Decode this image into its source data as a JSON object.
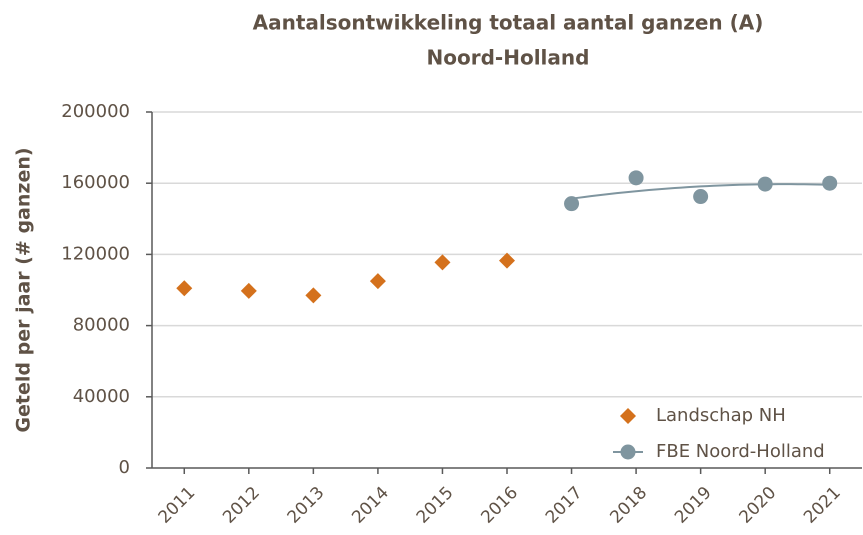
{
  "chart_data": {
    "type": "scatter",
    "title": [
      "Aantalsontwikkeling totaal aantal ganzen (A)",
      "Noord-Holland"
    ],
    "y_label": "Geteld per jaar (# ganzen)",
    "categories": [
      "2011",
      "2012",
      "2013",
      "2014",
      "2015",
      "2016",
      "2017",
      "2018",
      "2019",
      "2020",
      "2021"
    ],
    "series": [
      {
        "name": "Landschap NH",
        "color": "#d4711c",
        "marker": "diamond",
        "values": [
          101000,
          99500,
          97000,
          105000,
          115500,
          116500,
          null,
          null,
          null,
          null,
          null
        ]
      },
      {
        "name": "FBE Noord-Holland",
        "color": "#7f959f",
        "marker": "circle",
        "trendline": true,
        "values": [
          null,
          null,
          null,
          null,
          null,
          null,
          148500,
          163000,
          152500,
          159500,
          160000
        ]
      }
    ],
    "ylim": [
      0,
      200000
    ],
    "yticks": [
      0,
      40000,
      80000,
      120000,
      160000,
      200000
    ],
    "grid": true,
    "legend": "bottom-right"
  }
}
